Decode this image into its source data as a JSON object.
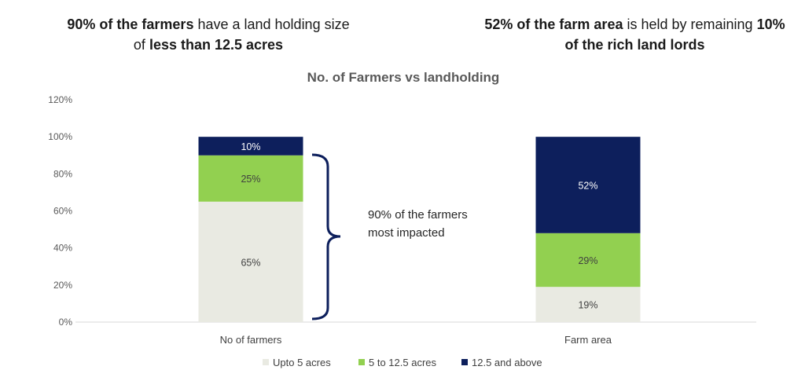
{
  "headlines": {
    "left": {
      "line1": [
        {
          "text": "90% of the farmers",
          "bold": true
        },
        {
          "text": " have a land holding size",
          "bold": false
        }
      ],
      "line2": [
        {
          "text": "of ",
          "bold": false
        },
        {
          "text": "less than 12.5 acres",
          "bold": true
        }
      ]
    },
    "right": {
      "line1": [
        {
          "text": "52% of the farm area",
          "bold": true
        },
        {
          "text": " is held by remaining ",
          "bold": false
        },
        {
          "text": "10%",
          "bold": true
        }
      ],
      "line2": [
        {
          "text": "of the rich land lords",
          "bold": true
        }
      ]
    }
  },
  "annotation": {
    "lines": [
      "90% of the farmers",
      "most impacted"
    ]
  },
  "chart_data": {
    "type": "bar",
    "stacked": true,
    "title": "No. of Farmers vs landholding",
    "categories": [
      "No of farmers",
      "Farm area"
    ],
    "series": [
      {
        "name": "Upto 5 acres",
        "values": [
          65,
          19
        ],
        "labels": [
          "65%",
          "19%"
        ],
        "color": "#E9EAE2",
        "label_color": "#404040"
      },
      {
        "name": "5 to 12.5 acres",
        "values": [
          25,
          29
        ],
        "labels": [
          "25%",
          "29%"
        ],
        "color": "#92D050",
        "label_color": "#404040"
      },
      {
        "name": "12.5 and above",
        "values": [
          10,
          52
        ],
        "labels": [
          "10%",
          "52%"
        ],
        "color": "#0D1F5C",
        "label_color": "#FFFFFF"
      }
    ],
    "ylim": [
      0,
      120
    ],
    "yticks": [
      0,
      20,
      40,
      60,
      80,
      100,
      120
    ],
    "ytick_labels": [
      "0%",
      "20%",
      "40%",
      "60%",
      "80%",
      "100%",
      "120%"
    ],
    "grid": false,
    "legend": "bottom",
    "xlabel": "",
    "ylabel": ""
  }
}
